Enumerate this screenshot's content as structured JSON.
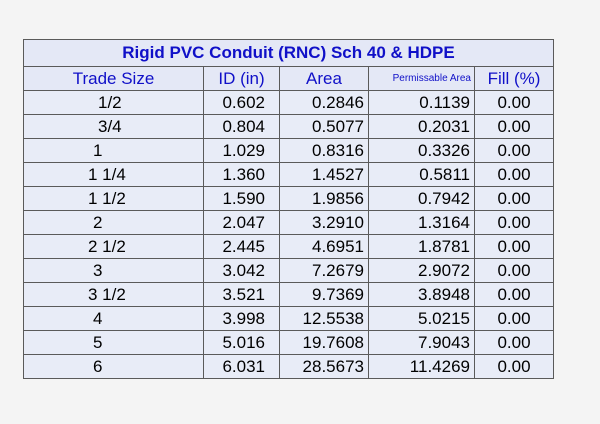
{
  "table": {
    "title": "Rigid PVC Conduit (RNC) Sch 40 & HDPE",
    "headers": {
      "trade_size": "Trade Size",
      "id": "ID (in)",
      "area": "Area",
      "permissable_area": "Permissable Area",
      "fill": "Fill (%)"
    },
    "rows": [
      {
        "trade_size": "1/2",
        "id": "0.602",
        "area": "0.2846",
        "permissable_area": "0.1139",
        "fill": "0.00"
      },
      {
        "trade_size": "3/4",
        "id": "0.804",
        "area": "0.5077",
        "permissable_area": "0.2031",
        "fill": "0.00"
      },
      {
        "trade_size": "1",
        "id": "1.029",
        "area": "0.8316",
        "permissable_area": "0.3326",
        "fill": "0.00"
      },
      {
        "trade_size": "1 1/4",
        "id": "1.360",
        "area": "1.4527",
        "permissable_area": "0.5811",
        "fill": "0.00"
      },
      {
        "trade_size": "1 1/2",
        "id": "1.590",
        "area": "1.9856",
        "permissable_area": "0.7942",
        "fill": "0.00"
      },
      {
        "trade_size": "2",
        "id": "2.047",
        "area": "3.2910",
        "permissable_area": "1.3164",
        "fill": "0.00"
      },
      {
        "trade_size": "2 1/2",
        "id": "2.445",
        "area": "4.6951",
        "permissable_area": "1.8781",
        "fill": "0.00"
      },
      {
        "trade_size": "3",
        "id": "3.042",
        "area": "7.2679",
        "permissable_area": "2.9072",
        "fill": "0.00"
      },
      {
        "trade_size": "3 1/2",
        "id": "3.521",
        "area": "9.7369",
        "permissable_area": "3.8948",
        "fill": "0.00"
      },
      {
        "trade_size": "4",
        "id": "3.998",
        "area": "12.5538",
        "permissable_area": "5.0215",
        "fill": "0.00"
      },
      {
        "trade_size": "5",
        "id": "5.016",
        "area": "19.7608",
        "permissable_area": "7.9043",
        "fill": "0.00"
      },
      {
        "trade_size": "6",
        "id": "6.031",
        "area": "28.5673",
        "permissable_area": "11.4269",
        "fill": "0.00"
      }
    ]
  }
}
